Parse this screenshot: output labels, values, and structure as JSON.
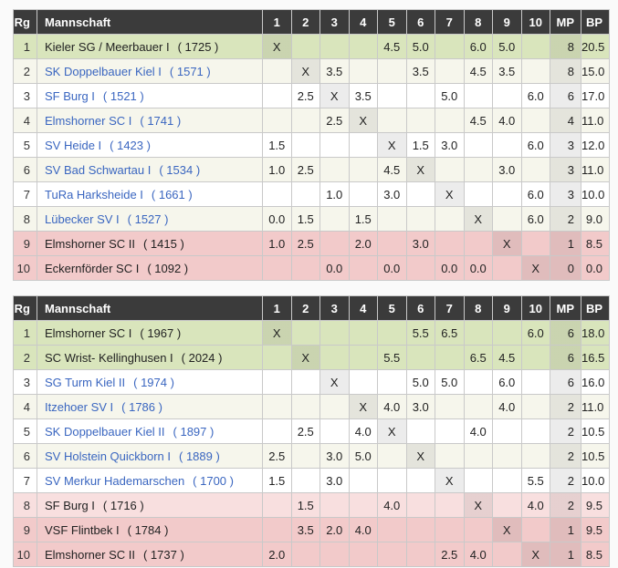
{
  "columns": [
    "Rg",
    "Mannschaft",
    "1",
    "2",
    "3",
    "4",
    "5",
    "6",
    "7",
    "8",
    "9",
    "10",
    "MP",
    "BP"
  ],
  "colors": {
    "header_bg": "#3b3b3b",
    "promotion_green": "#d9e5bc",
    "alt_row_cream": "#f6f6ec",
    "relegation_pink": "#f2caca",
    "relegation_pink_light": "#f8dfdf",
    "team_link_blue": "#3a66c0"
  },
  "tables": [
    {
      "name": "standings-table-1",
      "rows": [
        {
          "rank": "1",
          "team": "Kieler SG / Meerbauer I",
          "rating": "( 1725 )",
          "link": false,
          "highlight": "green",
          "cells": [
            "X",
            "",
            "",
            "",
            "4.5",
            "5.0",
            "",
            "6.0",
            "5.0",
            ""
          ],
          "mp": "8",
          "bp": "20.5"
        },
        {
          "rank": "2",
          "team": "SK Doppelbauer Kiel I",
          "rating": "( 1571 )",
          "link": true,
          "highlight": null,
          "cells": [
            "",
            "X",
            "3.5",
            "",
            "",
            "3.5",
            "",
            "4.5",
            "3.5",
            ""
          ],
          "mp": "8",
          "bp": "15.0"
        },
        {
          "rank": "3",
          "team": "SF Burg I",
          "rating": "( 1521 )",
          "link": true,
          "highlight": null,
          "cells": [
            "",
            "2.5",
            "X",
            "3.5",
            "",
            "",
            "5.0",
            "",
            "",
            "6.0"
          ],
          "mp": "6",
          "bp": "17.0"
        },
        {
          "rank": "4",
          "team": "Elmshorner SC I",
          "rating": "( 1741 )",
          "link": true,
          "highlight": null,
          "cells": [
            "",
            "",
            "2.5",
            "X",
            "",
            "",
            "",
            "4.5",
            "4.0",
            ""
          ],
          "mp": "4",
          "bp": "11.0"
        },
        {
          "rank": "5",
          "team": "SV Heide I",
          "rating": "( 1423 )",
          "link": true,
          "highlight": null,
          "cells": [
            "1.5",
            "",
            "",
            "",
            "X",
            "1.5",
            "3.0",
            "",
            "",
            "6.0"
          ],
          "mp": "3",
          "bp": "12.0"
        },
        {
          "rank": "6",
          "team": "SV Bad Schwartau I",
          "rating": "( 1534 )",
          "link": true,
          "highlight": null,
          "cells": [
            "1.0",
            "2.5",
            "",
            "",
            "4.5",
            "X",
            "",
            "",
            "3.0",
            ""
          ],
          "mp": "3",
          "bp": "11.0"
        },
        {
          "rank": "7",
          "team": "TuRa Harksheide I",
          "rating": "( 1661 )",
          "link": true,
          "highlight": null,
          "cells": [
            "",
            "",
            "1.0",
            "",
            "3.0",
            "",
            "X",
            "",
            "",
            "6.0"
          ],
          "mp": "3",
          "bp": "10.0"
        },
        {
          "rank": "8",
          "team": "Lübecker SV I",
          "rating": "( 1527 )",
          "link": true,
          "highlight": null,
          "cells": [
            "0.0",
            "1.5",
            "",
            "1.5",
            "",
            "",
            "",
            "X",
            "",
            "6.0"
          ],
          "mp": "2",
          "bp": "9.0"
        },
        {
          "rank": "9",
          "team": "Elmshorner SC II",
          "rating": "( 1415 )",
          "link": false,
          "highlight": "pink",
          "cells": [
            "1.0",
            "2.5",
            "",
            "2.0",
            "",
            "3.0",
            "",
            "",
            "X",
            ""
          ],
          "mp": "1",
          "bp": "8.5"
        },
        {
          "rank": "10",
          "team": "Eckernförder SC I",
          "rating": "( 1092 )",
          "link": false,
          "highlight": "pink",
          "cells": [
            "",
            "",
            "0.0",
            "",
            "0.0",
            "",
            "0.0",
            "0.0",
            "",
            "X"
          ],
          "mp": "0",
          "bp": "0.0"
        }
      ]
    },
    {
      "name": "standings-table-2",
      "rows": [
        {
          "rank": "1",
          "team": "Elmshorner SC I",
          "rating": "( 1967 )",
          "link": false,
          "highlight": "green",
          "cells": [
            "X",
            "",
            "",
            "",
            "",
            "5.5",
            "6.5",
            "",
            "",
            "6.0"
          ],
          "mp": "6",
          "bp": "18.0"
        },
        {
          "rank": "2",
          "team": "SC Wrist- Kellinghusen I",
          "rating": "( 2024 )",
          "link": false,
          "highlight": "green",
          "cells": [
            "",
            "X",
            "",
            "",
            "5.5",
            "",
            "",
            "6.5",
            "4.5",
            ""
          ],
          "mp": "6",
          "bp": "16.5"
        },
        {
          "rank": "3",
          "team": "SG Turm Kiel II",
          "rating": "( 1974 )",
          "link": true,
          "highlight": null,
          "cells": [
            "",
            "",
            "X",
            "",
            "",
            "5.0",
            "5.0",
            "",
            "6.0",
            ""
          ],
          "mp": "6",
          "bp": "16.0"
        },
        {
          "rank": "4",
          "team": "Itzehoer SV I",
          "rating": "( 1786 )",
          "link": true,
          "highlight": null,
          "cells": [
            "",
            "",
            "",
            "X",
            "4.0",
            "3.0",
            "",
            "",
            "4.0",
            ""
          ],
          "mp": "2",
          "bp": "11.0"
        },
        {
          "rank": "5",
          "team": "SK Doppelbauer Kiel II",
          "rating": "( 1897 )",
          "link": true,
          "highlight": null,
          "cells": [
            "",
            "2.5",
            "",
            "4.0",
            "X",
            "",
            "",
            "4.0",
            "",
            ""
          ],
          "mp": "2",
          "bp": "10.5"
        },
        {
          "rank": "6",
          "team": "SV Holstein Quickborn I",
          "rating": "( 1889 )",
          "link": true,
          "highlight": null,
          "cells": [
            "2.5",
            "",
            "3.0",
            "5.0",
            "",
            "X",
            "",
            "",
            "",
            ""
          ],
          "mp": "2",
          "bp": "10.5"
        },
        {
          "rank": "7",
          "team": "SV Merkur Hademarschen",
          "rating": "( 1700 )",
          "link": true,
          "highlight": null,
          "cells": [
            "1.5",
            "",
            "3.0",
            "",
            "",
            "",
            "X",
            "",
            "",
            "5.5"
          ],
          "mp": "2",
          "bp": "10.0"
        },
        {
          "rank": "8",
          "team": "SF Burg I",
          "rating": "( 1716 )",
          "link": false,
          "highlight": "pink-light",
          "cells": [
            "",
            "1.5",
            "",
            "",
            "4.0",
            "",
            "",
            "X",
            "",
            "4.0"
          ],
          "mp": "2",
          "bp": "9.5"
        },
        {
          "rank": "9",
          "team": "VSF Flintbek I",
          "rating": "( 1784 )",
          "link": false,
          "highlight": "pink",
          "cells": [
            "",
            "3.5",
            "2.0",
            "4.0",
            "",
            "",
            "",
            "",
            "X",
            ""
          ],
          "mp": "1",
          "bp": "9.5"
        },
        {
          "rank": "10",
          "team": "Elmshorner SC II",
          "rating": "( 1737 )",
          "link": false,
          "highlight": "pink",
          "cells": [
            "2.0",
            "",
            "",
            "",
            "",
            "",
            "2.5",
            "4.0",
            "",
            "X"
          ],
          "mp": "1",
          "bp": "8.5"
        }
      ]
    }
  ]
}
